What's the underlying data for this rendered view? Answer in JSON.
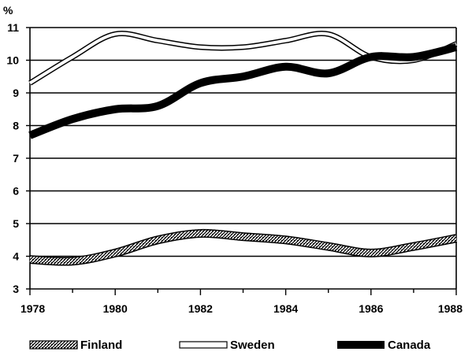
{
  "chart_data": {
    "type": "line",
    "title": "",
    "ylabel": "%",
    "xlabel": "",
    "xlim": [
      1978,
      1988
    ],
    "ylim": [
      3,
      11
    ],
    "grid": true,
    "legend_position": "bottom",
    "x_ticks": [
      "1978",
      "1980",
      "1982",
      "1984",
      "1986",
      "1988"
    ],
    "y_ticks": [
      "3",
      "4",
      "5",
      "6",
      "7",
      "8",
      "9",
      "10",
      "11"
    ],
    "x": [
      1978,
      1979,
      1980,
      1981,
      1982,
      1983,
      1984,
      1985,
      1986,
      1987,
      1988
    ],
    "series": [
      {
        "name": "Finland",
        "style": "hatched",
        "values": [
          3.9,
          3.85,
          4.1,
          4.5,
          4.7,
          4.6,
          4.5,
          4.3,
          4.1,
          4.3,
          4.55
        ]
      },
      {
        "name": "Sweden",
        "style": "hollow",
        "values": [
          9.3,
          10.1,
          10.8,
          10.6,
          10.4,
          10.4,
          10.6,
          10.8,
          10.1,
          10.0,
          10.5
        ]
      },
      {
        "name": "Canada",
        "style": "solid",
        "values": [
          7.7,
          8.2,
          8.5,
          8.6,
          9.3,
          9.5,
          9.8,
          9.6,
          10.1,
          10.1,
          10.4
        ]
      }
    ]
  },
  "colors": {
    "line": "#000000",
    "background": "#ffffff"
  }
}
